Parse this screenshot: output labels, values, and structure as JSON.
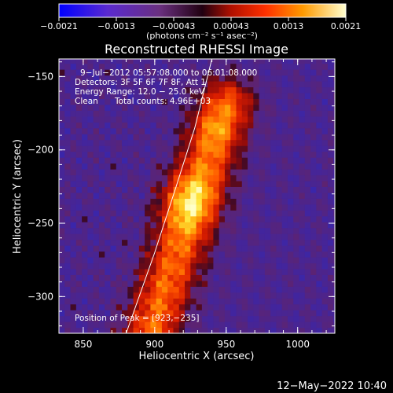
{
  "chart_data": {
    "type": "heatmap",
    "title": "Reconstructed RHESSI Image",
    "xlabel": "Heliocentric X (arcsec)",
    "ylabel": "Heliocentric Y (arcsec)",
    "xlim": [
      833,
      1026
    ],
    "ylim": [
      -325,
      -138
    ],
    "x_ticks": [
      850,
      900,
      950,
      1000
    ],
    "y_ticks": [
      -150,
      -200,
      -250,
      -300
    ],
    "x_tick_labels": [
      "850",
      "900",
      "950",
      "1000"
    ],
    "y_tick_labels": [
      "−150",
      "−200",
      "−250",
      "−300"
    ],
    "colorbar": {
      "range": [
        -0.0021,
        0.0021
      ],
      "tick_labels": [
        "−0.0021",
        "−0.0013",
        "−0.00043",
        "0.00043",
        "0.0013",
        "0.0021"
      ],
      "units_label": "(photons cm⁻² s⁻¹ asec⁻²)"
    },
    "annotations": [
      "9−Jul−2012 05:57:08.000 to 06:01:08.000",
      "Detectors: 3F 5F 6F 7F 8F, Att 1",
      "Energy Range: 12.0 − 25.0 keV",
      "Clean",
      "Total counts: 4.96E+03"
    ],
    "peak_label": "Position of Peak = [923,−235]",
    "peak": {
      "x": 923,
      "y": -235
    },
    "source": {
      "ridge_start": {
        "x": 895,
        "y": -330
      },
      "ridge_end": {
        "x": 950,
        "y": -170
      },
      "peak_value": 0.0021
    },
    "limb_arc": [
      [
        880,
        -325
      ],
      [
        900,
        -270
      ],
      [
        915,
        -225
      ],
      [
        928,
        -185
      ],
      [
        940,
        -138
      ]
    ],
    "background_colors": {
      "negative": "#3a2680",
      "positive_peak": "#ffffa8",
      "limb": "#ffffff"
    }
  },
  "footer": {
    "timestamp": "12−May−2022 10:40"
  }
}
